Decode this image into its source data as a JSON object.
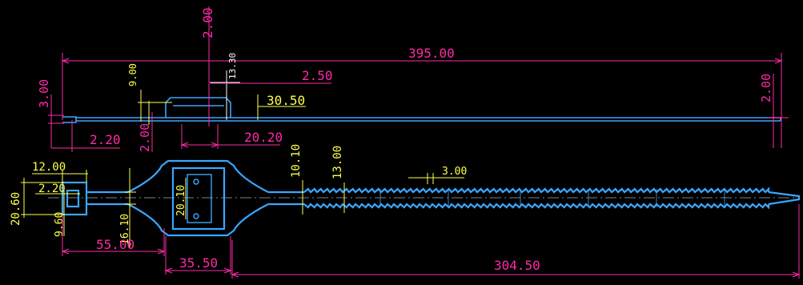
{
  "drawing": {
    "title": "",
    "colors": {
      "background": "#000000",
      "dimension": "#ff2aa8",
      "dimension_alt": "#ffff4d",
      "outline": "#3aa6ff",
      "centerline": "#ffffff",
      "white_leader": "#ffffff"
    },
    "dimensions": {
      "overall_length": "395.00",
      "top_gap": "2.00",
      "left_thickness": "3.00",
      "tab_height": "9.00",
      "boss_height": "13.30",
      "boss_width_small": "2.50",
      "boss_offset": "30.50",
      "right_thickness": "2.00",
      "left_offset": "2.20",
      "mid_thickness": "2.00",
      "boss_width": "20.20",
      "head_width": "12.00",
      "slot_width": "2.20",
      "head_height": "20.60",
      "slot_height": "9.60",
      "neck_width": "16.10",
      "neck_length": "55.00",
      "window_height": "20.10",
      "body_width": "35.50",
      "strap_height": "10.10",
      "teeth_height": "13.00",
      "tooth_pitch": "3.00",
      "strap_length": "304.50"
    }
  }
}
